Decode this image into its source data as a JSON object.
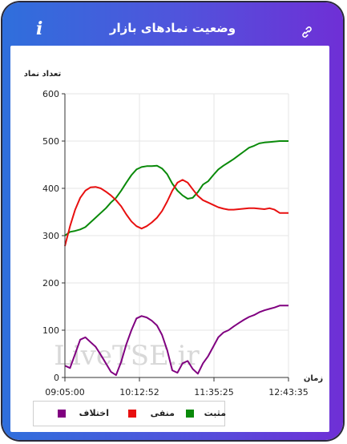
{
  "header": {
    "title": "وضعیت نمادهای بازار",
    "info_icon": "info-icon",
    "link_icon": "link-icon"
  },
  "colors": {
    "frame_left": "#2f6fdc",
    "frame_right": "#6f2fd6"
  },
  "watermark": "LiveTSE.ir",
  "chart_data": {
    "type": "line",
    "ylabel": "تعداد نماد",
    "xlabel": "زمان",
    "ylim": [
      0,
      600
    ],
    "yticks": [
      0,
      100,
      200,
      300,
      400,
      500,
      600
    ],
    "xticks": [
      "09:05:00",
      "10:12:52",
      "11:35:25",
      "12:43:35"
    ],
    "xlim_minutes": [
      0,
      218.6
    ],
    "x_minutes": [
      0,
      5,
      10,
      15,
      20,
      25,
      30,
      35,
      40,
      45,
      50,
      55,
      60,
      65,
      70,
      75,
      80,
      85,
      90,
      95,
      100,
      105,
      110,
      115,
      120,
      125,
      130,
      135,
      140,
      145,
      150,
      155,
      160,
      165,
      170,
      175,
      180,
      185,
      190,
      195,
      200,
      205,
      210,
      215,
      218.6
    ],
    "series": [
      {
        "name": "مثبت",
        "color": "#0a8a0a",
        "values": [
          300,
          308,
          310,
          313,
          318,
          328,
          338,
          348,
          358,
          370,
          380,
          395,
          412,
          428,
          440,
          445,
          447,
          447,
          448,
          442,
          430,
          410,
          395,
          385,
          378,
          380,
          392,
          408,
          415,
          428,
          440,
          448,
          455,
          462,
          470,
          478,
          486,
          490,
          495,
          497,
          498,
          499,
          500,
          500,
          500
        ]
      },
      {
        "name": "منفی",
        "color": "#e81010",
        "values": [
          278,
          320,
          355,
          380,
          395,
          402,
          403,
          400,
          393,
          385,
          375,
          362,
          345,
          330,
          320,
          315,
          320,
          328,
          338,
          352,
          372,
          395,
          412,
          418,
          412,
          398,
          384,
          375,
          370,
          365,
          360,
          357,
          355,
          355,
          356,
          357,
          358,
          358,
          357,
          356,
          358,
          355,
          348,
          348,
          348
        ]
      },
      {
        "name": "اختلاف",
        "color": "#800080",
        "values": [
          25,
          20,
          50,
          80,
          85,
          75,
          65,
          48,
          30,
          12,
          5,
          33,
          70,
          100,
          125,
          130,
          127,
          120,
          110,
          90,
          58,
          15,
          10,
          30,
          35,
          18,
          8,
          30,
          45,
          65,
          85,
          95,
          100,
          108,
          115,
          122,
          128,
          132,
          138,
          142,
          145,
          148,
          152,
          152,
          152
        ]
      }
    ],
    "legend_position": "bottom"
  }
}
